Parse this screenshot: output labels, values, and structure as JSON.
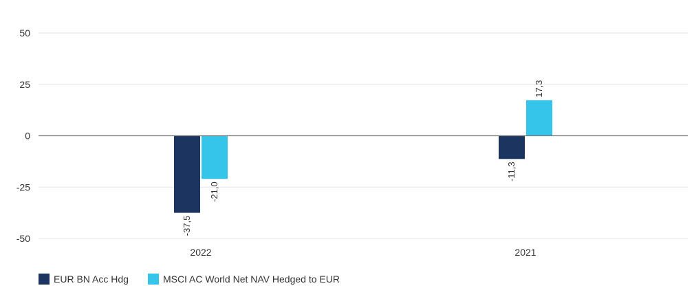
{
  "chart_data": {
    "type": "bar",
    "categories": [
      "2022",
      "2021"
    ],
    "series": [
      {
        "name": "EUR BN Acc Hdg",
        "values": [
          -37.5,
          -11.3
        ],
        "labels": [
          "-37,5",
          "-11,3"
        ],
        "color": "#1c3560"
      },
      {
        "name": "MSCI AC World Net NAV Hedged to EUR",
        "values": [
          -21.0,
          17.3
        ],
        "labels": [
          "-21,0",
          "17,3"
        ],
        "color": "#35c4ea"
      }
    ],
    "yticks": [
      50,
      25,
      0,
      -25,
      -50
    ],
    "ylim": [
      -50,
      50
    ],
    "grid": true,
    "legend": "bottom-left"
  }
}
